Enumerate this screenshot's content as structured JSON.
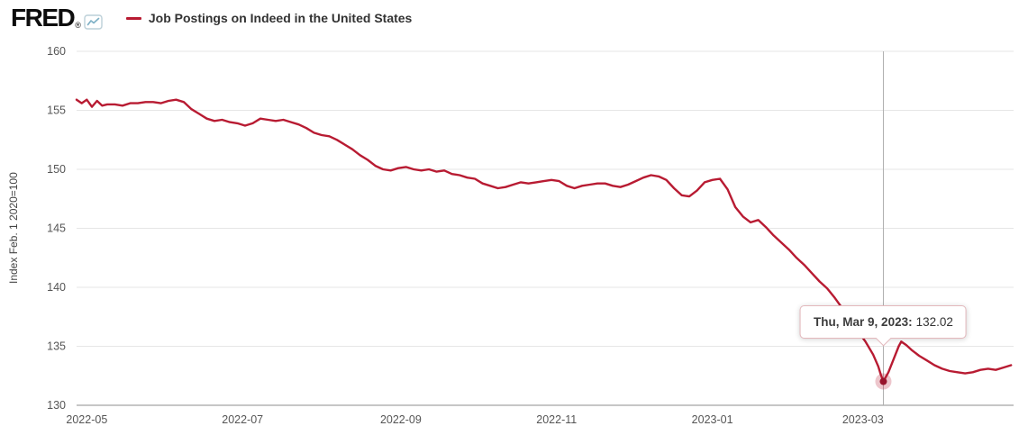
{
  "header": {
    "logo_text": "FRED",
    "registered_mark": "®",
    "legend": {
      "series_label": "Job Postings on Indeed in the United States"
    }
  },
  "tooltip": {
    "date_label": "Thu, Mar 9, 2023:",
    "value_label": "132.02"
  },
  "chart_data": {
    "type": "line",
    "title": "Job Postings on Indeed in the United States",
    "y_axis_title": "Index Feb. 1 2020=100",
    "x_domain": [
      "2022-04-27",
      "2023-04-29"
    ],
    "y_domain": [
      130,
      160
    ],
    "y_ticks": [
      130,
      135,
      140,
      145,
      150,
      155,
      160
    ],
    "x_ticks": [
      {
        "date": "2022-05-01",
        "label": "2022-05"
      },
      {
        "date": "2022-07-01",
        "label": "2022-07"
      },
      {
        "date": "2022-09-01",
        "label": "2022-09"
      },
      {
        "date": "2022-11-01",
        "label": "2022-11"
      },
      {
        "date": "2023-01-01",
        "label": "2023-01"
      },
      {
        "date": "2023-03-01",
        "label": "2023-03"
      }
    ],
    "grid": "horizontal",
    "legend_position": "top-left",
    "highlight": {
      "date": "2023-03-09",
      "value": 132.02,
      "tooltip_text": "Thu, Mar 9, 2023: 132.02"
    },
    "colors": {
      "line": "#b81b32",
      "grid": "#e6e6e6",
      "axis_line": "#8c8c8c",
      "crosshair": "#b0b0b0",
      "tick_text": "#555555",
      "dot": "#97142b",
      "halo": "rgba(184,27,50,0.25)",
      "tooltip_border": "#e3b8bc",
      "logo_icon_line": "#7fb1c6"
    },
    "series": [
      {
        "name": "Job Postings on Indeed in the United States",
        "points": [
          [
            "2022-04-27",
            155.9
          ],
          [
            "2022-04-29",
            155.6
          ],
          [
            "2022-05-01",
            155.9
          ],
          [
            "2022-05-03",
            155.3
          ],
          [
            "2022-05-05",
            155.8
          ],
          [
            "2022-05-07",
            155.4
          ],
          [
            "2022-05-09",
            155.5
          ],
          [
            "2022-05-12",
            155.5
          ],
          [
            "2022-05-15",
            155.4
          ],
          [
            "2022-05-18",
            155.6
          ],
          [
            "2022-05-21",
            155.6
          ],
          [
            "2022-05-24",
            155.7
          ],
          [
            "2022-05-27",
            155.7
          ],
          [
            "2022-05-30",
            155.6
          ],
          [
            "2022-06-02",
            155.8
          ],
          [
            "2022-06-05",
            155.9
          ],
          [
            "2022-06-08",
            155.7
          ],
          [
            "2022-06-11",
            155.1
          ],
          [
            "2022-06-14",
            154.7
          ],
          [
            "2022-06-17",
            154.3
          ],
          [
            "2022-06-20",
            154.1
          ],
          [
            "2022-06-23",
            154.2
          ],
          [
            "2022-06-26",
            154.0
          ],
          [
            "2022-06-29",
            153.9
          ],
          [
            "2022-07-02",
            153.7
          ],
          [
            "2022-07-05",
            153.9
          ],
          [
            "2022-07-08",
            154.3
          ],
          [
            "2022-07-11",
            154.2
          ],
          [
            "2022-07-14",
            154.1
          ],
          [
            "2022-07-17",
            154.2
          ],
          [
            "2022-07-20",
            154.0
          ],
          [
            "2022-07-23",
            153.8
          ],
          [
            "2022-07-26",
            153.5
          ],
          [
            "2022-07-29",
            153.1
          ],
          [
            "2022-08-01",
            152.9
          ],
          [
            "2022-08-04",
            152.8
          ],
          [
            "2022-08-07",
            152.5
          ],
          [
            "2022-08-10",
            152.1
          ],
          [
            "2022-08-13",
            151.7
          ],
          [
            "2022-08-16",
            151.2
          ],
          [
            "2022-08-19",
            150.8
          ],
          [
            "2022-08-22",
            150.3
          ],
          [
            "2022-08-25",
            150.0
          ],
          [
            "2022-08-28",
            149.9
          ],
          [
            "2022-08-31",
            150.1
          ],
          [
            "2022-09-03",
            150.2
          ],
          [
            "2022-09-06",
            150.0
          ],
          [
            "2022-09-09",
            149.9
          ],
          [
            "2022-09-12",
            150.0
          ],
          [
            "2022-09-15",
            149.8
          ],
          [
            "2022-09-18",
            149.9
          ],
          [
            "2022-09-21",
            149.6
          ],
          [
            "2022-09-24",
            149.5
          ],
          [
            "2022-09-27",
            149.3
          ],
          [
            "2022-09-30",
            149.2
          ],
          [
            "2022-10-03",
            148.8
          ],
          [
            "2022-10-06",
            148.6
          ],
          [
            "2022-10-09",
            148.4
          ],
          [
            "2022-10-12",
            148.5
          ],
          [
            "2022-10-15",
            148.7
          ],
          [
            "2022-10-18",
            148.9
          ],
          [
            "2022-10-21",
            148.8
          ],
          [
            "2022-10-24",
            148.9
          ],
          [
            "2022-10-27",
            149.0
          ],
          [
            "2022-10-30",
            149.1
          ],
          [
            "2022-11-02",
            149.0
          ],
          [
            "2022-11-05",
            148.6
          ],
          [
            "2022-11-08",
            148.4
          ],
          [
            "2022-11-11",
            148.6
          ],
          [
            "2022-11-14",
            148.7
          ],
          [
            "2022-11-17",
            148.8
          ],
          [
            "2022-11-20",
            148.8
          ],
          [
            "2022-11-23",
            148.6
          ],
          [
            "2022-11-26",
            148.5
          ],
          [
            "2022-11-29",
            148.7
          ],
          [
            "2022-12-02",
            149.0
          ],
          [
            "2022-12-05",
            149.3
          ],
          [
            "2022-12-08",
            149.5
          ],
          [
            "2022-12-11",
            149.4
          ],
          [
            "2022-12-14",
            149.1
          ],
          [
            "2022-12-17",
            148.4
          ],
          [
            "2022-12-20",
            147.8
          ],
          [
            "2022-12-23",
            147.7
          ],
          [
            "2022-12-26",
            148.2
          ],
          [
            "2022-12-29",
            148.9
          ],
          [
            "2023-01-01",
            149.1
          ],
          [
            "2023-01-04",
            149.2
          ],
          [
            "2023-01-07",
            148.3
          ],
          [
            "2023-01-10",
            146.8
          ],
          [
            "2023-01-13",
            146.0
          ],
          [
            "2023-01-16",
            145.5
          ],
          [
            "2023-01-19",
            145.7
          ],
          [
            "2023-01-22",
            145.1
          ],
          [
            "2023-01-25",
            144.4
          ],
          [
            "2023-01-28",
            143.8
          ],
          [
            "2023-01-31",
            143.2
          ],
          [
            "2023-02-03",
            142.5
          ],
          [
            "2023-02-06",
            141.9
          ],
          [
            "2023-02-09",
            141.2
          ],
          [
            "2023-02-12",
            140.5
          ],
          [
            "2023-02-15",
            139.9
          ],
          [
            "2023-02-18",
            139.1
          ],
          [
            "2023-02-21",
            138.2
          ],
          [
            "2023-02-24",
            137.2
          ],
          [
            "2023-02-27",
            136.3
          ],
          [
            "2023-03-02",
            135.4
          ],
          [
            "2023-03-05",
            134.3
          ],
          [
            "2023-03-07",
            133.3
          ],
          [
            "2023-03-08",
            132.6
          ],
          [
            "2023-03-09",
            132.02
          ],
          [
            "2023-03-11",
            132.8
          ],
          [
            "2023-03-13",
            133.9
          ],
          [
            "2023-03-15",
            135.0
          ],
          [
            "2023-03-16",
            135.4
          ],
          [
            "2023-03-18",
            135.1
          ],
          [
            "2023-03-20",
            134.7
          ],
          [
            "2023-03-23",
            134.2
          ],
          [
            "2023-03-26",
            133.8
          ],
          [
            "2023-03-29",
            133.4
          ],
          [
            "2023-04-01",
            133.1
          ],
          [
            "2023-04-04",
            132.9
          ],
          [
            "2023-04-07",
            132.8
          ],
          [
            "2023-04-10",
            132.7
          ],
          [
            "2023-04-13",
            132.8
          ],
          [
            "2023-04-16",
            133.0
          ],
          [
            "2023-04-19",
            133.1
          ],
          [
            "2023-04-22",
            133.0
          ],
          [
            "2023-04-25",
            133.2
          ],
          [
            "2023-04-28",
            133.4
          ]
        ]
      }
    ]
  }
}
